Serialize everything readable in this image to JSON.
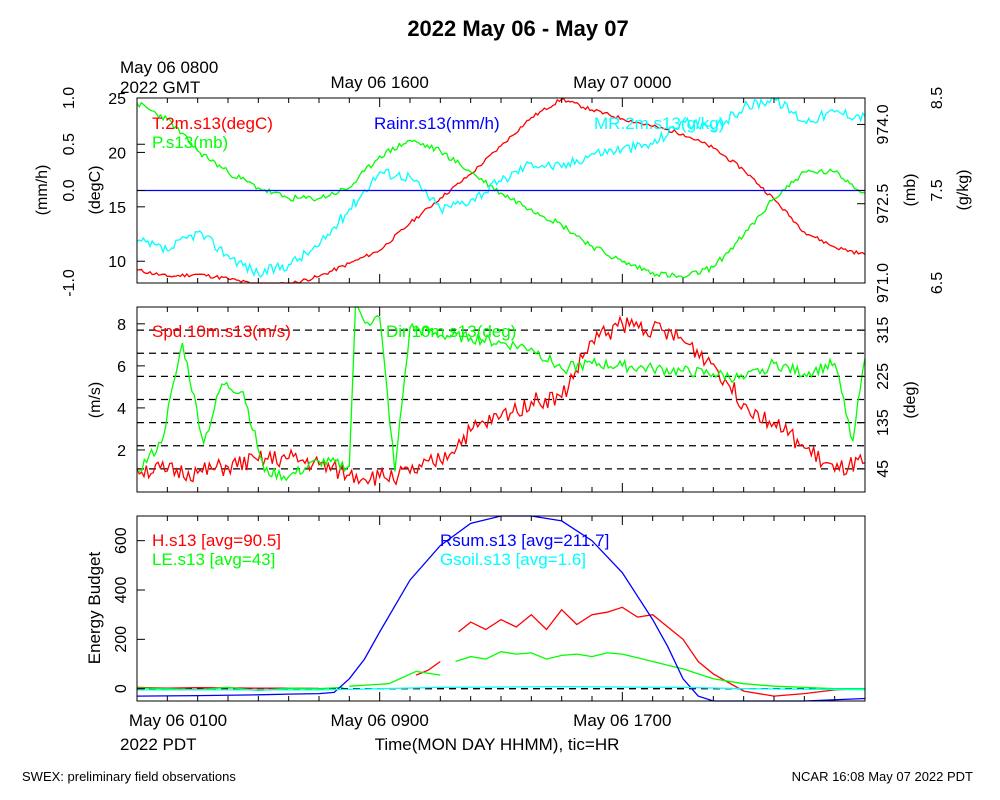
{
  "title": "2022 May 06 - May 07",
  "footer_left": "SWEX: preliminary field observations",
  "footer_right": "NCAR 16:08 May 07 2022 PDT",
  "colors": {
    "red": "#ff0000",
    "green": "#00ff00",
    "blue": "#0000ff",
    "cyan": "#00ffff",
    "black": "#000000"
  },
  "chart_data": [
    {
      "type": "line",
      "panel": "state",
      "top_axis": {
        "ticks": [
          {
            "hour": 0,
            "lines": [
              "May 06 0800",
              "2022 GMT"
            ]
          },
          {
            "hour": 8,
            "lines": [
              "May 06 1600"
            ]
          },
          {
            "hour": 16,
            "lines": [
              "May 07 0000"
            ]
          }
        ]
      },
      "axes": {
        "rain": {
          "label": "(mm/h)",
          "range": [
            -1.0,
            1.0
          ],
          "ticks": [
            "-1.0",
            "0.0",
            "0.5",
            "1.0"
          ],
          "tick_values": [
            -1.0,
            0.0,
            0.5,
            1.0
          ]
        },
        "temp": {
          "label": "(degC)",
          "range": [
            8,
            25
          ],
          "ticks": [
            "10",
            "15",
            "20",
            "25"
          ],
          "tick_values": [
            10,
            15,
            20,
            25
          ]
        },
        "pressure": {
          "label": "(mb)",
          "range": [
            971.0,
            974.5
          ],
          "ticks": [
            "971.0",
            "972.5",
            "974.0"
          ],
          "tick_values": [
            971.0,
            972.5,
            974.0
          ]
        },
        "mr": {
          "label": "(g/kg)",
          "range": [
            6.5,
            8.5
          ],
          "ticks": [
            "6.5",
            "7.5",
            "8.5"
          ],
          "tick_values": [
            6.5,
            7.5,
            8.5
          ]
        }
      },
      "series": [
        {
          "name": "T.2m.s13(degC)",
          "axis": "temp",
          "color": "#ff0000",
          "x": [
            0,
            1,
            2,
            3,
            4,
            5,
            6,
            7,
            8,
            9,
            10,
            11,
            12,
            13,
            14,
            15,
            16,
            17,
            18,
            19,
            20,
            21,
            22,
            23,
            24
          ],
          "y": [
            9.2,
            8.6,
            8.8,
            8.4,
            7.8,
            7.9,
            8.6,
            9.8,
            11.0,
            13.5,
            15.8,
            18.0,
            20.6,
            23.2,
            24.9,
            23.9,
            23.1,
            22.4,
            21.7,
            20.4,
            18.4,
            15.7,
            12.7,
            11.3,
            10.6
          ]
        },
        {
          "name": "P.s13(mb)",
          "axis": "pressure",
          "color": "#00ff00",
          "x": [
            0,
            1,
            2,
            3,
            4,
            5,
            6,
            7,
            8,
            9,
            10,
            11,
            12,
            13,
            14,
            15,
            16,
            17,
            18,
            19,
            20,
            21,
            22,
            23,
            24
          ],
          "y": [
            974.4,
            974.1,
            973.5,
            973.1,
            972.8,
            972.6,
            972.6,
            972.8,
            973.4,
            973.7,
            973.5,
            973.1,
            972.7,
            972.4,
            972.1,
            971.7,
            971.4,
            971.2,
            971.1,
            971.3,
            971.9,
            972.6,
            973.1,
            973.1,
            972.7
          ]
        },
        {
          "name": "MR.2m.s13(g/kg)",
          "axis": "mr",
          "color": "#00ffff",
          "x": [
            0,
            1,
            2,
            3,
            4,
            5,
            6,
            7,
            8,
            9,
            10,
            11,
            12,
            13,
            14,
            15,
            16,
            17,
            18,
            19,
            20,
            21,
            22,
            23,
            24
          ],
          "y": [
            6.95,
            6.85,
            7.05,
            6.8,
            6.6,
            6.7,
            6.9,
            7.3,
            7.7,
            7.65,
            7.3,
            7.4,
            7.6,
            7.8,
            7.75,
            7.9,
            7.95,
            8.0,
            8.25,
            8.15,
            8.4,
            8.5,
            8.25,
            8.35,
            8.3
          ]
        },
        {
          "name": "Rainr.s13(mm/h)",
          "axis": "rain",
          "color": "#0000ff",
          "x": [
            0,
            24
          ],
          "y": [
            0,
            0
          ]
        }
      ]
    },
    {
      "type": "line",
      "panel": "wind",
      "axes": {
        "speed": {
          "label": "(m/s)",
          "range": [
            0,
            8.8
          ],
          "ticks": [
            "2",
            "4",
            "6",
            "8"
          ],
          "tick_values": [
            2,
            4,
            6,
            8
          ]
        },
        "dir": {
          "label": "(deg)",
          "range": [
            0,
            360
          ],
          "ticks": [
            "45",
            "135",
            "225",
            "315"
          ],
          "tick_values": [
            45,
            135,
            225,
            315
          ]
        }
      },
      "dir_gridlines": [
        45,
        90,
        135,
        180,
        225,
        270,
        315,
        360
      ],
      "series": [
        {
          "name": "Spd.10m.s13(m/s)",
          "axis": "speed",
          "color": "#ff0000",
          "x": [
            0,
            1,
            2,
            3,
            4,
            5,
            6,
            7,
            8,
            9,
            10,
            11,
            12,
            13,
            14,
            15,
            16,
            17,
            18,
            19,
            20,
            21,
            22,
            23,
            24
          ],
          "y": [
            1.1,
            1.0,
            0.9,
            1.2,
            1.5,
            1.6,
            1.3,
            0.8,
            0.7,
            0.9,
            1.5,
            2.9,
            3.6,
            4.3,
            4.5,
            7.2,
            8.0,
            7.8,
            7.2,
            6.1,
            4.2,
            3.3,
            2.1,
            1.0,
            1.4
          ]
        },
        {
          "name": "Dir.10m.s13(deg)",
          "axis": "dir",
          "color": "#00ff00",
          "x": [
            0,
            0.8,
            1.5,
            2.2,
            2.8,
            3.5,
            4.2,
            5,
            6,
            7,
            7.2,
            7.6,
            8,
            8.5,
            9,
            10,
            11,
            12,
            13,
            14,
            15,
            16,
            17,
            18,
            19,
            20,
            21,
            22,
            23,
            23.6,
            24
          ],
          "y": [
            40,
            95,
            290,
            95,
            210,
            195,
            40,
            30,
            60,
            50,
            360,
            330,
            340,
            40,
            320,
            305,
            300,
            290,
            280,
            240,
            250,
            245,
            240,
            235,
            230,
            220,
            250,
            230,
            250,
            100,
            260
          ]
        }
      ]
    },
    {
      "type": "line",
      "panel": "energy",
      "x_axis": {
        "label": "Time(MON DAY HHMM), tic=HR",
        "ticks": [
          {
            "hour": 0,
            "label": "May 06 0100"
          },
          {
            "hour": 8,
            "label": "May 06 0900"
          },
          {
            "hour": 16,
            "label": "May 06 1700"
          }
        ],
        "corner": "2022 PDT"
      },
      "axes": {
        "energy": {
          "label": "Energy Budget",
          "range": [
            -50,
            700
          ],
          "ticks": [
            "0",
            "200",
            "400",
            "600"
          ],
          "tick_values": [
            0,
            200,
            400,
            600
          ]
        }
      },
      "series": [
        {
          "name": "H.s13",
          "avg_label": "[avg=90.5]",
          "color": "#ff0000",
          "segments": [
            {
              "x": [
                0,
                1,
                2,
                3,
                4,
                5,
                6
              ],
              "y": [
                5,
                2,
                4,
                3,
                2,
                2,
                1
              ]
            },
            {
              "x": [
                9.2,
                9.6,
                10.0
              ],
              "y": [
                55,
                75,
                110
              ]
            },
            {
              "x": [
                10.6,
                11.0,
                11.5,
                12,
                12.5,
                13,
                13.5,
                14,
                14.5,
                15,
                15.5,
                16,
                16.5,
                17,
                17.5,
                18,
                18.5,
                19,
                20,
                21,
                22,
                23,
                24
              ],
              "y": [
                230,
                270,
                240,
                280,
                250,
                300,
                240,
                320,
                260,
                300,
                310,
                330,
                290,
                300,
                250,
                200,
                110,
                60,
                -10,
                -30,
                -20,
                -5,
                0
              ]
            }
          ]
        },
        {
          "name": "LE.s13",
          "avg_label": "[avg=43]",
          "color": "#00ff00",
          "segments": [
            {
              "x": [
                0,
                1,
                2,
                3,
                4,
                5,
                6,
                6.8
              ],
              "y": [
                3,
                0,
                -5,
                5,
                -8,
                2,
                0,
                5
              ]
            },
            {
              "x": [
                7,
                8.3,
                9.2,
                10.0
              ],
              "y": [
                10,
                20,
                70,
                55
              ]
            },
            {
              "x": [
                10.5,
                11.0,
                11.5,
                12,
                12.5,
                13,
                13.5,
                14,
                14.5,
                15,
                15.5,
                16,
                16.5,
                17,
                17.5,
                18,
                18.5,
                19,
                20,
                21,
                22,
                23,
                24
              ],
              "y": [
                110,
                130,
                120,
                150,
                140,
                145,
                120,
                135,
                140,
                130,
                145,
                140,
                125,
                110,
                95,
                80,
                60,
                40,
                20,
                10,
                5,
                0,
                0
              ]
            }
          ]
        },
        {
          "name": "Rsum.s13",
          "avg_label": "[avg=211.7]",
          "color": "#0000ff",
          "segments": [
            {
              "x": [
                0,
                2,
                4,
                5,
                6,
                6.5,
                7,
                7.5,
                8,
                9,
                10,
                11,
                12,
                13,
                14,
                15,
                16,
                17,
                17.5,
                18,
                18.5,
                19,
                20,
                22,
                24
              ],
              "y": [
                -30,
                -28,
                -25,
                -22,
                -20,
                -15,
                40,
                120,
                230,
                440,
                580,
                670,
                720,
                720,
                680,
                600,
                470,
                280,
                170,
                40,
                -30,
                -60,
                -60,
                -50,
                -40
              ]
            }
          ]
        },
        {
          "name": "Gsoil.s13",
          "avg_label": "[avg=1.6]",
          "color": "#00ffff",
          "segments": [
            {
              "x": [
                0,
                6,
                7,
                10,
                14,
                18,
                20,
                24
              ],
              "y": [
                -5,
                -5,
                -3,
                5,
                8,
                5,
                0,
                -4
              ]
            }
          ]
        }
      ]
    }
  ]
}
